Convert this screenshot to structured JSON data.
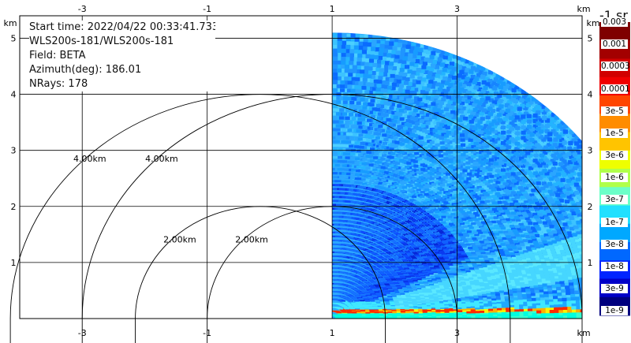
{
  "chart_data": {
    "type": "heatmap",
    "subtype": "lidar-rhi-sector",
    "info": {
      "start_time": "Start time: 2022/04/22 00:33:41.733",
      "instrument": "WLS200s-181/WLS200s-181",
      "field": "Field: BETA",
      "azimuth": "Azimuth(deg): 186.01",
      "nrays": "NRays: 178"
    },
    "x_unit": "km",
    "y_unit": "km",
    "xlim": [
      -4.0,
      5.0
    ],
    "ylim": [
      0.0,
      5.4
    ],
    "x_ticks": [
      "-3",
      "-1",
      "1",
      "3"
    ],
    "x_tick_values": [
      -3,
      -1,
      1,
      3
    ],
    "y_ticks": [
      "1",
      "2",
      "3",
      "4",
      "5"
    ],
    "y_tick_values": [
      1,
      2,
      3,
      4,
      5
    ],
    "grid": true,
    "range_rings": [
      {
        "radius_km": 2.0,
        "label": "2.00km"
      },
      {
        "radius_km": 4.0,
        "label": "4.00km"
      }
    ],
    "sector": {
      "origin": [
        1.0,
        0.0
      ],
      "max_range_km": 5.1,
      "elevation_deg": [
        0,
        90
      ]
    },
    "colorbar": {
      "title": "-1 sr",
      "labels": [
        "0.003",
        "0.001",
        "0.0003",
        "0.0001",
        "3e-5",
        "1e-5",
        "3e-6",
        "1e-6",
        "3e-7",
        "1e-7",
        "3e-8",
        "1e-8",
        "3e-9",
        "1e-9"
      ],
      "colors": [
        "#7f0000",
        "#a30000",
        "#d10000",
        "#f00000",
        "#ff4500",
        "#ff8c00",
        "#ffc400",
        "#eeff00",
        "#b0ff4a",
        "#6cffc8",
        "#20e0ff",
        "#00a8ff",
        "#0068ff",
        "#0024ff",
        "#0000c8",
        "#00007f"
      ]
    }
  }
}
